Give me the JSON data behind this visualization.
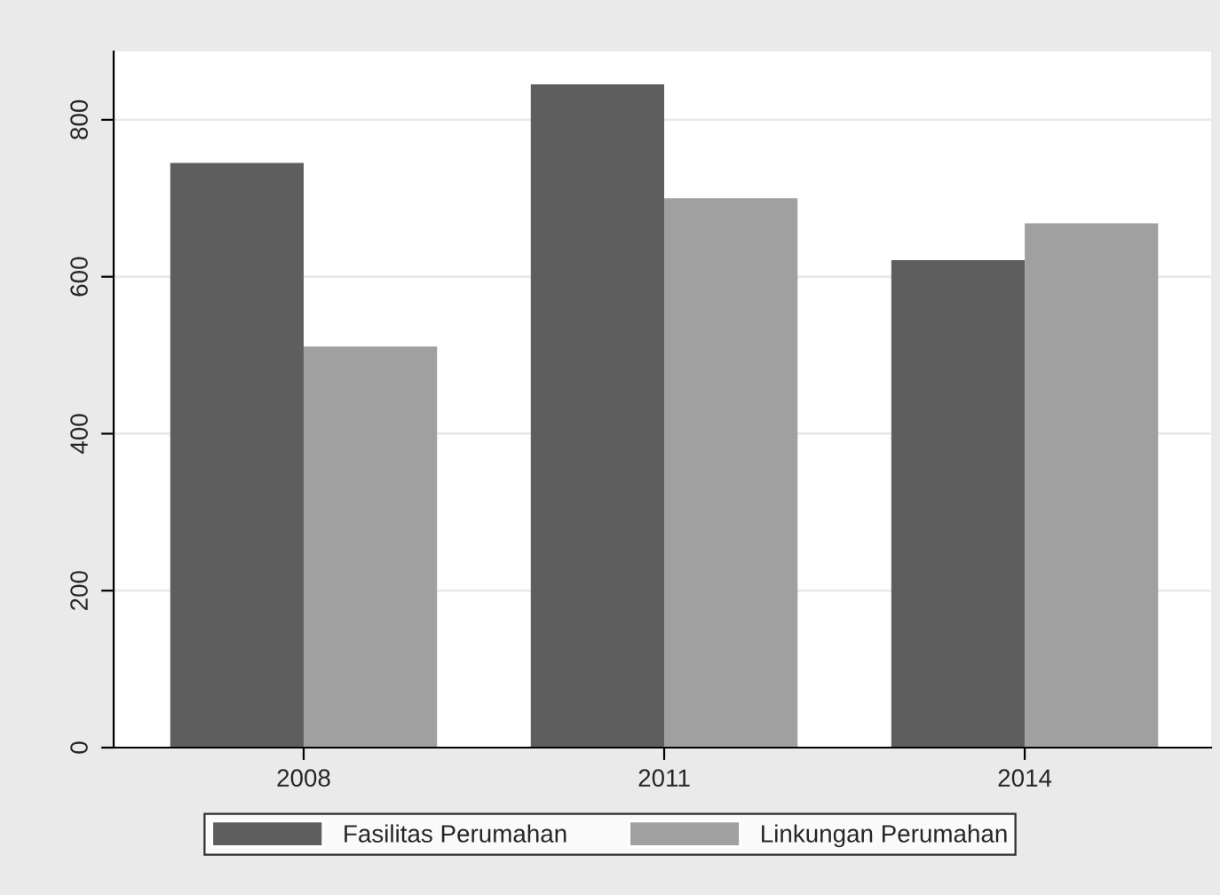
{
  "chart_data": {
    "type": "bar",
    "categories": [
      "2008",
      "2011",
      "2014"
    ],
    "series": [
      {
        "name": "Fasilitas Perumahan",
        "color": "#5e5e5e",
        "values": [
          745,
          845,
          621
        ]
      },
      {
        "name": "Linkungan Perumahan",
        "color": "#a0a0a0",
        "values": [
          511,
          700,
          668
        ]
      }
    ],
    "ylim": [
      0,
      887
    ],
    "yticks": [
      0,
      200,
      400,
      600,
      800
    ],
    "grid": "y",
    "legend": "bottom"
  }
}
